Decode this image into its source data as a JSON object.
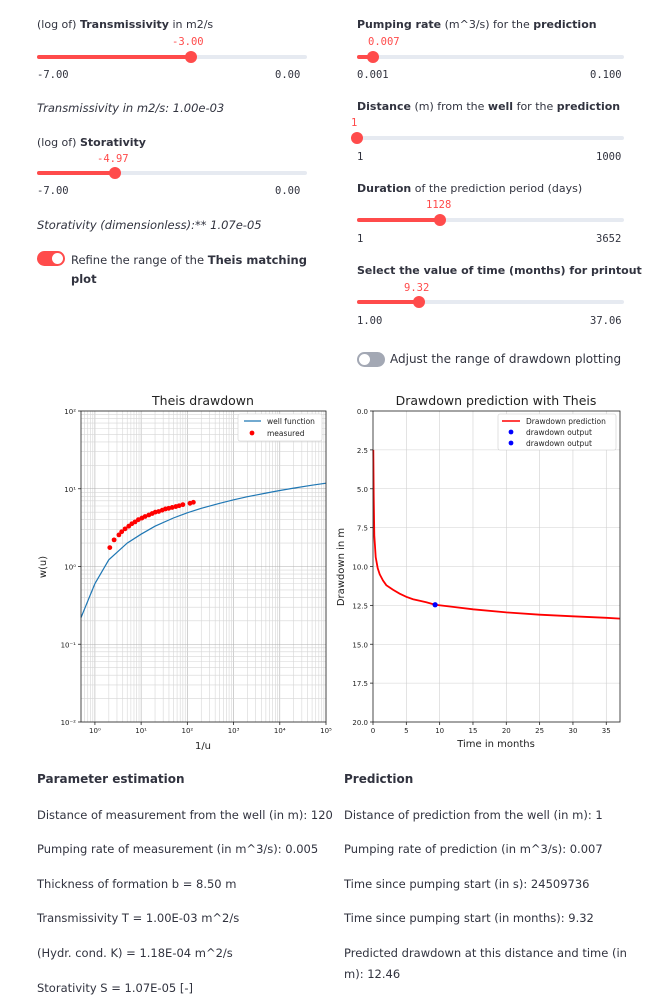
{
  "left": {
    "transmissivity_log": {
      "label_prefix": "(log of)",
      "label_bold": "Transmissivity",
      "label_suffix": "in m2/s",
      "value": "-3.00",
      "min": "-7.00",
      "max": "0.00",
      "fraction": 0.571
    },
    "transmissivity_text": "Transmissivity in m2/s: 1.00e-03",
    "storativity_log": {
      "label_prefix": "(log of)",
      "label_bold": "Storativity",
      "value": "-4.97",
      "min": "-7.00",
      "max": "0.00",
      "fraction": 0.29
    },
    "storativity_text": "Storativity (dimensionless):** 1.07e-05",
    "refine_toggle": {
      "label_prefix": "Refine the range of the",
      "label_bold": "Theis matching",
      "label_line2": "plot",
      "on": true
    }
  },
  "right": {
    "pumping_rate": {
      "label_prefix": "Pumping rate",
      "label_suffix": "(m^3/s) for the",
      "label_bold": "prediction",
      "value": "0.007",
      "min": "0.001",
      "max": "0.100",
      "fraction": 0.061
    },
    "distance": {
      "label_bold1": "Distance",
      "label_mid": "(m) from the",
      "label_bold2": "well",
      "label_mid2": "for the",
      "label_bold3": "prediction",
      "value": "1",
      "min": "1",
      "max": "1000",
      "fraction": 0.0
    },
    "duration": {
      "label_bold": "Duration",
      "label_suffix": "of the prediction period (days)",
      "value": "1128",
      "min": "1",
      "max": "3652",
      "fraction": 0.309
    },
    "time_printout": {
      "label": "Select the value of time (months) for printout",
      "value": "9.32",
      "min": "1.00",
      "max": "37.06",
      "fraction": 0.231
    },
    "adjust_toggle": {
      "label": "Adjust the range of drawdown plotting",
      "on": false
    }
  },
  "colors": {
    "accent": "#ff4b4b",
    "track": "#e6eaf1",
    "well_curve": "#1f77b4",
    "measured": "#ff0000",
    "prediction_line": "#ff0000",
    "prediction_point": "#0000ff"
  },
  "chart_data": [
    {
      "type": "scatter",
      "title": "Theis drawdown",
      "xlabel": "1/u",
      "ylabel": "w(u)",
      "xscale": "log",
      "yscale": "log",
      "xlim": [
        0.5,
        100000
      ],
      "ylim": [
        0.01,
        100
      ],
      "x_ticks": [
        "10⁰",
        "10¹",
        "10²",
        "10³",
        "10⁴",
        "10⁵"
      ],
      "y_ticks": [
        "10⁻²",
        "10⁻¹",
        "10⁰",
        "10¹",
        "10²"
      ],
      "grid": true,
      "legend": "top-right",
      "series": [
        {
          "name": "well function",
          "kind": "line",
          "x": [
            0.5,
            1,
            2,
            5,
            10,
            20,
            50,
            100,
            200,
            500,
            1000,
            2000,
            5000,
            10000,
            20000,
            50000,
            100000
          ],
          "y": [
            0.22,
            0.6,
            1.22,
            2.0,
            2.6,
            3.3,
            4.2,
            4.9,
            5.6,
            6.5,
            7.2,
            7.9,
            8.8,
            9.5,
            10.2,
            11.1,
            11.8
          ]
        },
        {
          "name": "measured",
          "kind": "scatter",
          "x": [
            2.1,
            2.6,
            3.3,
            3.8,
            4.5,
            5.4,
            6.3,
            7.4,
            8.7,
            10.4,
            12.2,
            14.7,
            17.3,
            20.2,
            24,
            28.6,
            33.6,
            39.5,
            47,
            56.3,
            66.5,
            80,
            114,
            135
          ],
          "y": [
            1.75,
            2.2,
            2.55,
            2.8,
            3.05,
            3.3,
            3.55,
            3.75,
            4.0,
            4.2,
            4.4,
            4.6,
            4.8,
            5.0,
            5.1,
            5.3,
            5.5,
            5.6,
            5.75,
            5.9,
            6.05,
            6.25,
            6.5,
            6.7
          ]
        }
      ]
    },
    {
      "type": "line",
      "title": "Drawdown prediction with Theis",
      "xlabel": "Time in months",
      "ylabel": "Drawdown in m",
      "xlim": [
        0,
        37.06
      ],
      "ylim": [
        20,
        0
      ],
      "x_ticks": [
        "0",
        "5",
        "10",
        "15",
        "20",
        "25",
        "30",
        "35"
      ],
      "y_ticks": [
        "0.0",
        "2.5",
        "5.0",
        "7.5",
        "10.0",
        "12.5",
        "15.0",
        "17.5",
        "20.0"
      ],
      "grid": true,
      "legend": "top-right",
      "series": [
        {
          "name": "Drawdown prediction",
          "kind": "line",
          "x": [
            0.05,
            0.1,
            0.2,
            0.4,
            0.7,
            1,
            1.5,
            2,
            3,
            4,
            5,
            6,
            7,
            8,
            9.32,
            12,
            15,
            20,
            25,
            30,
            35,
            37.06
          ],
          "y": [
            2.5,
            5.5,
            8.0,
            9.4,
            10.1,
            10.5,
            10.9,
            11.2,
            11.5,
            11.75,
            11.95,
            12.1,
            12.2,
            12.3,
            12.46,
            12.6,
            12.75,
            12.95,
            13.1,
            13.2,
            13.3,
            13.35
          ]
        },
        {
          "name": "drawdown output",
          "kind": "scatter",
          "x": [
            9.32
          ],
          "y": [
            12.46
          ]
        },
        {
          "name": "drawdown output",
          "kind": "scatter",
          "x": [
            9.32
          ],
          "y": [
            12.46
          ]
        }
      ]
    }
  ],
  "param_estimation": {
    "heading": "Parameter estimation",
    "lines": [
      "Distance of measurement from the well (in m): 120",
      "Pumping rate of measurement (in m^3/s): 0.005",
      "Thickness of formation b = 8.50 m",
      "Transmissivity T = 1.00E-03 m^2/s",
      "(Hydr. cond. K) = 1.18E-04 m^2/s",
      "Storativity S = 1.07E-05 [-]"
    ]
  },
  "prediction": {
    "heading": "Prediction",
    "lines": [
      "Distance of prediction from the well (in m): 1",
      "Pumping rate of prediction (in m^3/s): 0.007",
      "Time since pumping start (in s): 24509736",
      "Time since pumping start (in months): 9.32"
    ],
    "drawdown_line1": "Predicted drawdown at this distance and time (in",
    "drawdown_line2": "m): 12.46"
  }
}
